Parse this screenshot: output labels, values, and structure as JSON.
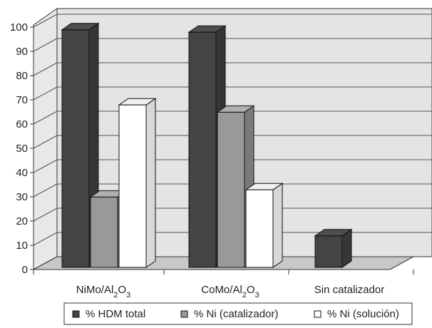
{
  "chart_data": {
    "type": "bar",
    "style": "3d-clustered-column",
    "categories": [
      {
        "base": "NiMo/Al",
        "sub": "2",
        "rest": "O",
        "sub2": "3"
      },
      {
        "base": "CoMo/Al",
        "sub": "2",
        "rest": "O",
        "sub2": "3"
      },
      {
        "base": "Sin catalizador",
        "sub": "",
        "rest": "",
        "sub2": ""
      }
    ],
    "series": [
      {
        "name": "% HDM total",
        "color": "#444444",
        "values": [
          98,
          97,
          13
        ]
      },
      {
        "name": "% Ni (catalizador)",
        "color": "#999999",
        "values": [
          29,
          64,
          null
        ]
      },
      {
        "name": "% Ni (solución)",
        "color": "#ffffff",
        "values": [
          67,
          32,
          null
        ]
      }
    ],
    "ylim": [
      0,
      100
    ],
    "yticks": [
      "0",
      "10",
      "20",
      "30",
      "40",
      "50",
      "60",
      "70",
      "80",
      "90",
      "100"
    ],
    "grid": true,
    "legend": "bottom",
    "title": "",
    "xlabel": "",
    "ylabel": ""
  }
}
